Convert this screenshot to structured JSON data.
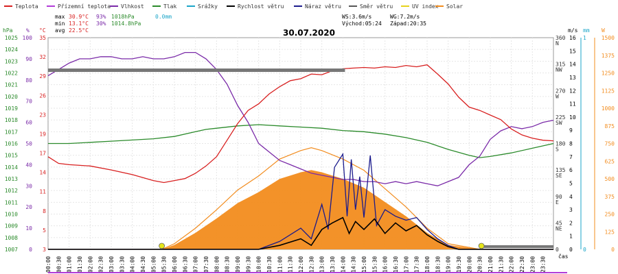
{
  "legend": [
    {
      "label": "Teplota",
      "color": "#d81f1f"
    },
    {
      "label": "Přízemní teplota",
      "color": "#b23bd8"
    },
    {
      "label": "Vlhkost",
      "color": "#7a2aa8"
    },
    {
      "label": "Tlak",
      "color": "#2a8a2a"
    },
    {
      "label": "Srážky",
      "color": "#1aa5c8"
    },
    {
      "label": "Rychlost větru",
      "color": "#000000"
    },
    {
      "label": "Náraz větru",
      "color": "#1a1a8c"
    },
    {
      "label": "Směr větru",
      "color": "#555555"
    },
    {
      "label": "UV index",
      "color": "#e6d21a"
    },
    {
      "label": "Solar",
      "color": "#f28c1e"
    }
  ],
  "stats": {
    "max_label": "max",
    "max_temp": "30.9°C",
    "max_hum": "93%",
    "max_press": "1018hPa",
    "rain": "0.0mm",
    "min_label": "min",
    "min_temp": "13.1°C",
    "min_hum": "30%",
    "min_press": "1014.8hPa",
    "avg_label": "avg",
    "avg_temp": "22.5°C"
  },
  "wind_info": {
    "ws": "WS:3.6m/s",
    "wg": "WG:7.2m/s",
    "sunrise": "Východ:05:24",
    "sunset": "Západ:20:35"
  },
  "date_title": "30.07.2020",
  "axis_units": {
    "hpa": "hPa",
    "pct": "%",
    "degc": "°C",
    "ms": "m/s",
    "mm": "mm",
    "w": "W",
    "cas": "čas"
  },
  "left_axes": {
    "hpa": [
      "1025",
      "1024",
      "1023",
      "1022",
      "1021",
      "1020",
      "1019",
      "1018",
      "1017",
      "1016",
      "1015",
      "1014",
      "1013",
      "1012",
      "1011",
      "1010",
      "1009",
      "1008",
      "1007"
    ],
    "pct": [
      "100",
      "90",
      "80",
      "70",
      "60",
      "50",
      "40",
      "30",
      "20",
      "10",
      "0"
    ],
    "degc": [
      "35",
      "32",
      "29",
      "26",
      "23",
      "19",
      "17",
      "14",
      "11",
      "8",
      "5",
      "3"
    ]
  },
  "right_axes": {
    "dir": [
      "360",
      "315",
      "270",
      "225",
      "180",
      "135",
      "90",
      "45",
      "0"
    ],
    "dir_names": [
      "N",
      "NW",
      "W",
      "SW",
      "S",
      "SE",
      "E",
      "NE",
      ""
    ],
    "ms": [
      "16",
      "15",
      "14",
      "13",
      "12",
      "11",
      "10",
      "9",
      "8",
      "7",
      "6",
      "5",
      "4",
      "3",
      "2",
      "1",
      "0"
    ],
    "mm": [
      "1",
      "0"
    ],
    "w": [
      "1500",
      "1375",
      "1250",
      "1125",
      "1000",
      "875",
      "750",
      "625",
      "500",
      "375",
      "250",
      "125",
      "0"
    ]
  },
  "x_ticks": [
    "00:00",
    "00:30",
    "01:00",
    "01:30",
    "02:00",
    "02:30",
    "03:00",
    "03:30",
    "04:00",
    "04:30",
    "05:00",
    "05:30",
    "06:00",
    "06:30",
    "07:00",
    "07:30",
    "08:00",
    "08:30",
    "09:00",
    "09:30",
    "10:00",
    "10:30",
    "11:00",
    "11:30",
    "12:00",
    "12:30",
    "13:00",
    "13:30",
    "14:00",
    "14:30",
    "15:00",
    "15:30",
    "16:00",
    "16:30",
    "17:00",
    "17:30",
    "18:00",
    "18:30",
    "19:00",
    "19:30",
    "20:00",
    "20:30",
    "21:00",
    "21:30",
    "22:00",
    "22:30",
    "23:00",
    "23:30"
  ],
  "chart_data": {
    "type": "line",
    "title": "30.07.2020",
    "x_unit": "hours",
    "series": [
      {
        "name": "Teplota",
        "unit": "°C",
        "color": "#d81f1f",
        "points": [
          [
            0,
            17
          ],
          [
            0.5,
            16
          ],
          [
            1,
            15.8
          ],
          [
            2,
            15.6
          ],
          [
            3,
            15
          ],
          [
            4,
            14.3
          ],
          [
            5,
            13.4
          ],
          [
            5.5,
            13.1
          ],
          [
            6,
            13.4
          ],
          [
            6.5,
            13.7
          ],
          [
            7,
            14.5
          ],
          [
            7.5,
            15.6
          ],
          [
            8,
            17
          ],
          [
            8.5,
            19.5
          ],
          [
            9,
            22
          ],
          [
            9.5,
            24
          ],
          [
            10,
            25
          ],
          [
            10.5,
            26.5
          ],
          [
            11,
            27.6
          ],
          [
            11.5,
            28.5
          ],
          [
            12,
            28.8
          ],
          [
            12.5,
            29.5
          ],
          [
            13,
            29.4
          ],
          [
            13.5,
            30
          ],
          [
            14,
            30.3
          ],
          [
            14.5,
            30.4
          ],
          [
            15,
            30.5
          ],
          [
            15.5,
            30.4
          ],
          [
            16,
            30.6
          ],
          [
            16.5,
            30.5
          ],
          [
            17,
            30.8
          ],
          [
            17.5,
            30.6
          ],
          [
            18,
            30.9
          ],
          [
            18.5,
            29.5
          ],
          [
            19,
            28
          ],
          [
            19.5,
            26
          ],
          [
            20,
            24.5
          ],
          [
            20.5,
            24
          ],
          [
            21,
            23.3
          ],
          [
            21.5,
            22.6
          ],
          [
            22,
            21.2
          ],
          [
            22.5,
            20.3
          ],
          [
            23,
            19.8
          ],
          [
            23.5,
            19.5
          ],
          [
            24,
            19.4
          ]
        ]
      },
      {
        "name": "Vlhkost",
        "unit": "%",
        "color": "#7a2aa8",
        "points": [
          [
            0,
            82
          ],
          [
            0.5,
            85
          ],
          [
            1,
            88
          ],
          [
            1.5,
            90
          ],
          [
            2,
            90
          ],
          [
            2.5,
            91
          ],
          [
            3,
            91
          ],
          [
            3.5,
            90
          ],
          [
            4,
            90
          ],
          [
            4.5,
            91
          ],
          [
            5,
            90
          ],
          [
            5.5,
            90
          ],
          [
            6,
            91
          ],
          [
            6.5,
            93
          ],
          [
            7,
            93
          ],
          [
            7.5,
            90
          ],
          [
            8,
            85
          ],
          [
            8.5,
            78
          ],
          [
            9,
            68
          ],
          [
            9.5,
            60
          ],
          [
            10,
            50
          ],
          [
            10.5,
            46
          ],
          [
            11,
            42
          ],
          [
            11.5,
            40
          ],
          [
            12,
            38
          ],
          [
            12.5,
            36
          ],
          [
            13,
            35
          ],
          [
            13.5,
            34
          ],
          [
            14,
            33
          ],
          [
            14.5,
            33
          ],
          [
            15,
            32
          ],
          [
            15.5,
            32
          ],
          [
            16,
            31
          ],
          [
            16.5,
            32
          ],
          [
            17,
            31
          ],
          [
            17.5,
            32
          ],
          [
            18,
            31
          ],
          [
            18.5,
            30
          ],
          [
            19,
            32
          ],
          [
            19.5,
            34
          ],
          [
            20,
            40
          ],
          [
            20.5,
            44
          ],
          [
            21,
            52
          ],
          [
            21.5,
            56
          ],
          [
            22,
            58
          ],
          [
            22.5,
            57
          ],
          [
            23,
            58
          ],
          [
            23.5,
            60
          ],
          [
            24,
            61
          ]
        ]
      },
      {
        "name": "Tlak",
        "unit": "hPa",
        "color": "#2a8a2a",
        "points": [
          [
            0,
            1016
          ],
          [
            1,
            1016
          ],
          [
            2,
            1016.1
          ],
          [
            3,
            1016.2
          ],
          [
            4,
            1016.3
          ],
          [
            5,
            1016.4
          ],
          [
            6,
            1016.6
          ],
          [
            7,
            1017
          ],
          [
            7.5,
            1017.2
          ],
          [
            8,
            1017.3
          ],
          [
            9,
            1017.5
          ],
          [
            10,
            1017.6
          ],
          [
            11,
            1017.5
          ],
          [
            12,
            1017.4
          ],
          [
            13,
            1017.3
          ],
          [
            14,
            1017.1
          ],
          [
            15,
            1017
          ],
          [
            16,
            1016.8
          ],
          [
            17,
            1016.5
          ],
          [
            18,
            1016.1
          ],
          [
            19,
            1015.5
          ],
          [
            20,
            1015.0
          ],
          [
            20.5,
            1014.8
          ],
          [
            21,
            1014.9
          ],
          [
            22,
            1015.2
          ],
          [
            23,
            1015.6
          ],
          [
            24,
            1016
          ]
        ]
      },
      {
        "name": "Rychlost větru",
        "unit": "m/s",
        "color": "#000000",
        "points": [
          [
            0,
            0
          ],
          [
            10,
            0
          ],
          [
            11,
            0.3
          ],
          [
            12,
            0.8
          ],
          [
            12.5,
            0.3
          ],
          [
            13,
            1.5
          ],
          [
            13.5,
            2
          ],
          [
            14,
            2.4
          ],
          [
            14.3,
            1.2
          ],
          [
            14.6,
            2.1
          ],
          [
            15,
            1.5
          ],
          [
            15.5,
            2.3
          ],
          [
            16,
            1.2
          ],
          [
            16.5,
            2
          ],
          [
            17,
            1.4
          ],
          [
            17.5,
            1.8
          ],
          [
            18,
            1.1
          ],
          [
            18.5,
            0.6
          ],
          [
            19,
            0.2
          ],
          [
            19.5,
            0
          ],
          [
            24,
            0
          ]
        ]
      },
      {
        "name": "Náraz větru",
        "unit": "m/s",
        "color": "#1a1a8c",
        "points": [
          [
            0,
            0
          ],
          [
            10,
            0
          ],
          [
            11,
            0.6
          ],
          [
            12,
            1.6
          ],
          [
            12.5,
            0.8
          ],
          [
            13,
            3.4
          ],
          [
            13.3,
            1.5
          ],
          [
            13.6,
            6.2
          ],
          [
            14,
            7.2
          ],
          [
            14.2,
            2.5
          ],
          [
            14.4,
            6.8
          ],
          [
            14.6,
            3
          ],
          [
            14.8,
            5.5
          ],
          [
            15,
            2.4
          ],
          [
            15.3,
            7.1
          ],
          [
            15.6,
            1.8
          ],
          [
            16,
            3
          ],
          [
            16.5,
            2.5
          ],
          [
            17,
            2.2
          ],
          [
            17.5,
            2.4
          ],
          [
            18,
            1.5
          ],
          [
            18.5,
            0.8
          ],
          [
            19,
            0.3
          ],
          [
            19.5,
            0
          ],
          [
            24,
            0
          ]
        ]
      },
      {
        "name": "Solar",
        "unit": "W",
        "color": "#f28c1e",
        "points": [
          [
            0,
            0
          ],
          [
            5.4,
            0
          ],
          [
            6,
            40
          ],
          [
            7,
            150
          ],
          [
            8,
            280
          ],
          [
            9,
            420
          ],
          [
            10,
            520
          ],
          [
            11,
            640
          ],
          [
            12,
            700
          ],
          [
            12.5,
            720
          ],
          [
            13,
            700
          ],
          [
            14,
            640
          ],
          [
            15,
            560
          ],
          [
            16,
            430
          ],
          [
            17,
            300
          ],
          [
            18,
            150
          ],
          [
            19,
            40
          ],
          [
            20.5,
            0
          ],
          [
            24,
            0
          ]
        ]
      }
    ],
    "left_axes": {
      "pressure_hpa": [
        1007,
        1025
      ],
      "humidity_pct": [
        0,
        100
      ],
      "temperature_c": [
        3,
        35
      ]
    },
    "right_axes": {
      "wind_dir_deg": [
        0,
        360
      ],
      "wind_ms": [
        0,
        16
      ],
      "rain_mm": [
        0,
        1
      ],
      "solar_w": [
        0,
        1500
      ]
    },
    "grid": true
  }
}
